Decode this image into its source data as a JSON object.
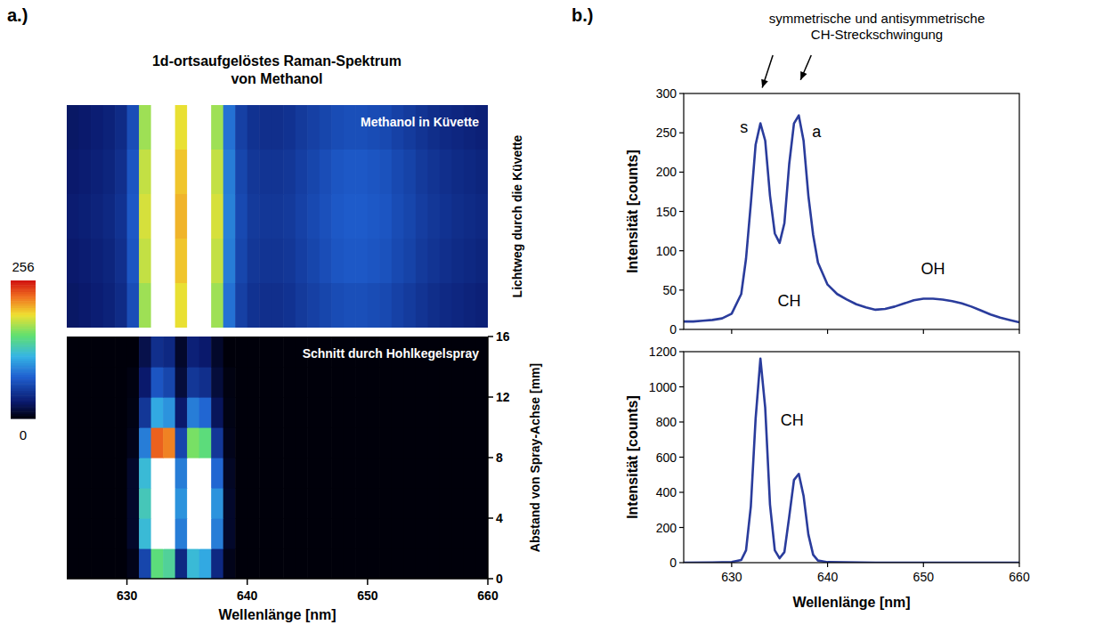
{
  "figure": {
    "panels": [
      {
        "label": "a.)",
        "title": "1d-ortsaufgelöstes Raman-Spektrum von Methanol"
      },
      {
        "label": "b.)",
        "title": "symmetrische und antisymmetrische CH-Streckschwingung"
      }
    ]
  },
  "chart_data": [
    {
      "type": "heatmap",
      "annotation": "Methanol in Küvette",
      "ylabel": "Lichtweg durch die Küvette",
      "xlim": [
        625,
        660
      ],
      "xbins": [
        625,
        626,
        627,
        628,
        629,
        630,
        631,
        632,
        633,
        634,
        635,
        636,
        637,
        638,
        639,
        640,
        641,
        642,
        643,
        644,
        645,
        646,
        647,
        648,
        649,
        650,
        651,
        652,
        653,
        654,
        655,
        656,
        657,
        658,
        659,
        660
      ],
      "cells": [
        [
          28,
          30,
          33,
          36,
          42,
          65,
          170,
          300,
          300,
          190,
          300,
          300,
          170,
          85,
          56,
          47,
          45,
          45,
          47,
          52,
          56,
          60,
          64,
          66,
          66,
          64,
          62,
          57,
          53,
          48,
          44,
          41,
          39,
          37,
          35
        ],
        [
          30,
          32,
          35,
          38,
          45,
          70,
          180,
          300,
          300,
          200,
          300,
          300,
          180,
          90,
          60,
          50,
          48,
          48,
          50,
          55,
          60,
          65,
          70,
          72,
          72,
          70,
          68,
          62,
          58,
          52,
          48,
          45,
          42,
          40,
          38
        ],
        [
          32,
          34,
          37,
          40,
          47,
          72,
          185,
          300,
          300,
          205,
          300,
          300,
          185,
          92,
          62,
          52,
          50,
          50,
          52,
          57,
          62,
          67,
          72,
          74,
          74,
          72,
          70,
          64,
          60,
          54,
          50,
          47,
          44,
          42,
          40
        ],
        [
          30,
          32,
          35,
          38,
          45,
          70,
          180,
          300,
          300,
          200,
          300,
          300,
          180,
          90,
          60,
          50,
          48,
          48,
          50,
          55,
          60,
          65,
          70,
          72,
          72,
          70,
          68,
          62,
          58,
          52,
          48,
          45,
          42,
          40,
          38
        ],
        [
          28,
          30,
          33,
          36,
          42,
          65,
          170,
          300,
          300,
          190,
          300,
          300,
          170,
          85,
          56,
          47,
          45,
          45,
          47,
          52,
          56,
          60,
          64,
          66,
          66,
          64,
          62,
          57,
          53,
          48,
          44,
          41,
          39,
          37,
          35
        ]
      ],
      "colorbar": {
        "range": [
          0,
          256
        ],
        "ticks": [
          0,
          256
        ]
      }
    },
    {
      "type": "heatmap",
      "annotation": "Schnitt durch Hohlkegelspray",
      "xlabel": "Wellenlänge [nm]",
      "ylabel": "Abstand von Spray-Achse [mm]",
      "xlim": [
        625,
        660
      ],
      "xticks": [
        630,
        640,
        650,
        660
      ],
      "ylim": [
        0,
        16
      ],
      "yticks": [
        0,
        4,
        8,
        12,
        16
      ],
      "xbins": [
        625,
        626,
        627,
        628,
        629,
        630,
        631,
        632,
        633,
        634,
        635,
        636,
        637,
        638,
        639,
        640,
        641,
        642,
        643,
        644,
        645,
        646,
        647,
        648,
        649,
        650,
        651,
        652,
        653,
        654,
        655,
        656,
        657,
        658,
        659,
        660
      ],
      "ybins": [
        0,
        2,
        4,
        6,
        8,
        10,
        12,
        14,
        16
      ],
      "cells": [
        [
          0,
          0,
          0,
          0,
          0,
          5,
          60,
          150,
          140,
          40,
          120,
          110,
          40,
          5,
          0,
          0,
          0,
          0,
          0,
          0,
          0,
          0,
          0,
          0,
          0,
          0,
          0,
          0,
          0,
          0,
          0,
          0,
          0,
          0,
          0
        ],
        [
          0,
          0,
          0,
          0,
          0,
          10,
          120,
          300,
          300,
          90,
          300,
          280,
          90,
          10,
          0,
          0,
          0,
          0,
          0,
          0,
          0,
          0,
          0,
          0,
          0,
          0,
          0,
          0,
          0,
          0,
          0,
          0,
          0,
          0,
          0
        ],
        [
          0,
          0,
          0,
          0,
          0,
          10,
          130,
          300,
          300,
          100,
          300,
          300,
          100,
          10,
          0,
          0,
          0,
          0,
          0,
          0,
          0,
          0,
          0,
          0,
          0,
          0,
          0,
          0,
          0,
          0,
          0,
          0,
          0,
          0,
          0
        ],
        [
          0,
          0,
          0,
          0,
          0,
          10,
          120,
          300,
          300,
          90,
          300,
          260,
          80,
          8,
          0,
          0,
          0,
          0,
          0,
          0,
          0,
          0,
          0,
          0,
          0,
          0,
          0,
          0,
          0,
          0,
          0,
          0,
          0,
          0,
          0
        ],
        [
          0,
          0,
          0,
          0,
          0,
          5,
          90,
          230,
          220,
          60,
          160,
          150,
          50,
          5,
          0,
          0,
          0,
          0,
          0,
          0,
          0,
          0,
          0,
          0,
          0,
          0,
          0,
          0,
          0,
          0,
          0,
          0,
          0,
          0,
          0
        ],
        [
          0,
          0,
          0,
          0,
          0,
          3,
          50,
          110,
          100,
          30,
          90,
          80,
          25,
          3,
          0,
          0,
          0,
          0,
          0,
          0,
          0,
          0,
          0,
          0,
          0,
          0,
          0,
          0,
          0,
          0,
          0,
          0,
          0,
          0,
          0
        ],
        [
          0,
          0,
          0,
          0,
          0,
          2,
          30,
          70,
          60,
          15,
          50,
          45,
          15,
          2,
          0,
          0,
          0,
          0,
          0,
          0,
          0,
          0,
          0,
          0,
          0,
          0,
          0,
          0,
          0,
          0,
          0,
          0,
          0,
          0,
          0
        ],
        [
          0,
          0,
          0,
          0,
          0,
          0,
          20,
          45,
          40,
          10,
          35,
          30,
          10,
          0,
          0,
          0,
          0,
          0,
          0,
          0,
          0,
          0,
          0,
          0,
          0,
          0,
          0,
          0,
          0,
          0,
          0,
          0,
          0,
          0,
          0
        ]
      ]
    },
    {
      "type": "line",
      "ylabel": "Intensität [counts]",
      "color": "#2a3c9c",
      "xlim": [
        625,
        660
      ],
      "xticks": [
        630,
        640,
        650,
        660
      ],
      "ylim": [
        0,
        300
      ],
      "yticks": [
        0,
        50,
        100,
        150,
        200,
        250,
        300
      ],
      "tick_labels": "y",
      "annotations": [
        "s",
        "a",
        "CH",
        "OH"
      ],
      "x": [
        625,
        626,
        627,
        628,
        629,
        630,
        631,
        631.5,
        632,
        632.5,
        633,
        633.5,
        634,
        634.5,
        635,
        635.5,
        636,
        636.5,
        637,
        637.5,
        638,
        638.5,
        639,
        640,
        641,
        642,
        643,
        644,
        645,
        646,
        647,
        648,
        649,
        650,
        651,
        652,
        653,
        654,
        655,
        656,
        657,
        658,
        659,
        660
      ],
      "values": [
        10,
        10,
        11,
        12,
        14,
        20,
        45,
        90,
        160,
        235,
        262,
        240,
        170,
        122,
        110,
        135,
        210,
        262,
        272,
        240,
        170,
        120,
        85,
        57,
        45,
        38,
        32,
        28,
        25,
        26,
        29,
        33,
        37,
        39,
        39,
        38,
        36,
        33,
        29,
        24,
        19,
        15,
        12,
        9
      ]
    },
    {
      "type": "line",
      "ylabel": "Intensität [counts]",
      "xlabel": "Wellenlänge [nm]",
      "color": "#2a3c9c",
      "xlim": [
        625,
        660
      ],
      "xticks": [
        630,
        640,
        650,
        660
      ],
      "ylim": [
        0,
        1200
      ],
      "yticks": [
        0,
        200,
        400,
        600,
        800,
        1000,
        1200
      ],
      "annotations": [
        "CH"
      ],
      "x": [
        625,
        628,
        630,
        631,
        631.5,
        632,
        632.5,
        633,
        633.5,
        634,
        634.5,
        635,
        635.5,
        636,
        636.5,
        637,
        637.5,
        638,
        638.5,
        639,
        640,
        645,
        660
      ],
      "values": [
        0,
        1,
        4,
        15,
        70,
        320,
        820,
        1160,
        880,
        330,
        70,
        25,
        60,
        260,
        470,
        505,
        380,
        160,
        45,
        12,
        3,
        0,
        0
      ]
    }
  ]
}
